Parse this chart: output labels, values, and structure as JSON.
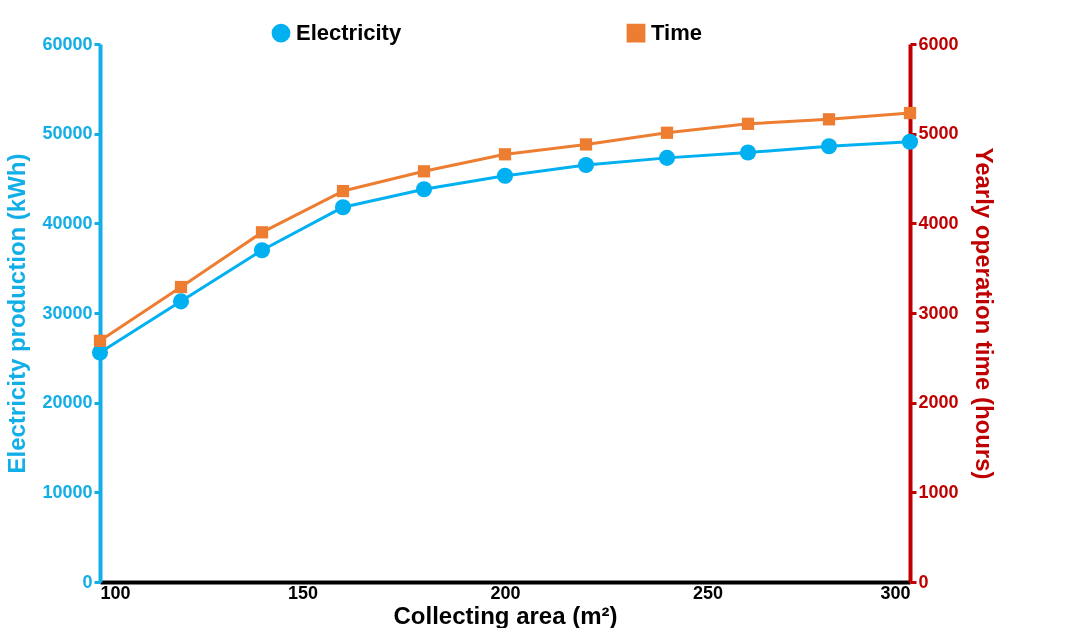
{
  "chart_data": {
    "type": "line",
    "xlabel": "Collecting area (m²)",
    "ylabel": "Electricity production (kWh)",
    "y2label": "Yearly operation time (hours)",
    "x": [
      100,
      120,
      140,
      160,
      180,
      200,
      220,
      240,
      260,
      280,
      300
    ],
    "series": [
      {
        "name": "Electricity",
        "color": "#00b0f0",
        "marker": "circle",
        "values": [
          25600,
          31300,
          37000,
          41800,
          43800,
          45300,
          46500,
          47300,
          47900,
          48600,
          49100
        ]
      },
      {
        "name": "Time",
        "color": "#ed7d31",
        "marker": "square",
        "axis": "y2",
        "values": [
          2690,
          3290,
          3900,
          4360,
          4580,
          4770,
          4880,
          5010,
          5110,
          5160,
          5230
        ]
      }
    ],
    "xlim": [
      100,
      300
    ],
    "xticks": [
      100,
      150,
      200,
      250,
      300
    ],
    "ylim": [
      0,
      60000
    ],
    "yticks": [
      0,
      10000,
      20000,
      30000,
      40000,
      50000,
      60000
    ],
    "y2lim": [
      0,
      6000
    ],
    "y2ticks": [
      0,
      1000,
      2000,
      3000,
      4000,
      5000,
      6000
    ],
    "legend": "top",
    "grid": false,
    "line_style": "solid"
  }
}
